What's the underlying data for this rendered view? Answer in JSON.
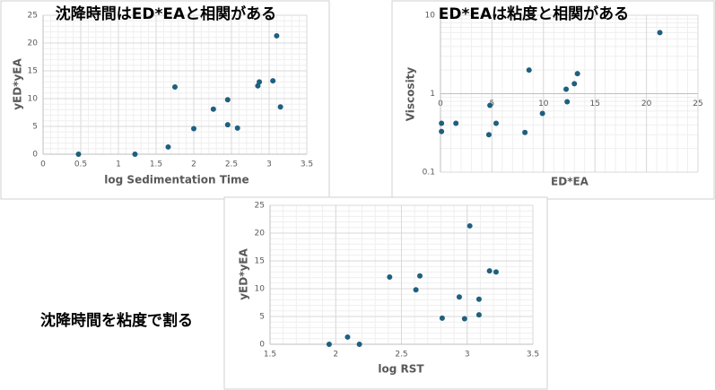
{
  "caption": "沈降時間を粘度で割る",
  "chart_data": [
    {
      "type": "scatter",
      "title": "沈降時間はED*EAと相関がある",
      "x_label": "log Sedimentation Time",
      "y_label": "yED*yEA",
      "color": "#1f5f7f",
      "grid": true,
      "minor_grid": true,
      "x": [
        0.47,
        1.22,
        1.66,
        1.75,
        2.0,
        2.26,
        2.45,
        2.45,
        2.58,
        2.85,
        2.87,
        3.05,
        3.1,
        3.15
      ],
      "y": [
        0,
        0,
        1.3,
        12.1,
        4.6,
        8.1,
        9.8,
        5.3,
        4.7,
        12.3,
        13.0,
        13.2,
        21.3,
        8.5
      ],
      "xlim": [
        0,
        3.5
      ],
      "xticks": [
        0,
        0.5,
        1,
        1.5,
        2,
        2.5,
        3,
        3.5
      ],
      "ylim": [
        0,
        25
      ],
      "yticks": [
        0,
        5,
        10,
        15,
        20,
        25
      ]
    },
    {
      "type": "scatter",
      "title": "ED*EAは粘度と相関がある",
      "x_label": "ED*EA",
      "y_label": "Viscosity",
      "color": "#1f5f7f",
      "grid": true,
      "minor_grid": true,
      "ylog": true,
      "x_axis_crosses": 1,
      "x": [
        0.1,
        0.1,
        1.5,
        4.8,
        4.7,
        5.4,
        8.2,
        8.6,
        9.9,
        12.2,
        12.3,
        13.0,
        13.3,
        21.3
      ],
      "y": [
        0.42,
        0.33,
        0.42,
        0.71,
        0.3,
        0.42,
        0.32,
        2.0,
        0.56,
        1.14,
        0.79,
        1.34,
        1.8,
        6.0
      ],
      "xlim": [
        0,
        25
      ],
      "xticks": [
        0,
        5,
        10,
        15,
        20,
        25
      ],
      "ylim": [
        0.1,
        10
      ],
      "yticks": [
        0.1,
        1,
        10
      ]
    },
    {
      "type": "scatter",
      "x_label": "log RST",
      "y_label": "yED*yEA",
      "color": "#1f5f7f",
      "grid": true,
      "minor_grid": true,
      "x": [
        1.95,
        2.09,
        2.18,
        2.41,
        2.61,
        2.64,
        2.81,
        2.94,
        2.98,
        3.02,
        3.09,
        3.09,
        3.17,
        3.22
      ],
      "y": [
        0,
        1.3,
        0,
        12.1,
        9.8,
        12.3,
        4.7,
        8.5,
        4.6,
        21.3,
        5.3,
        8.1,
        13.2,
        13.0
      ],
      "xlim": [
        1.5,
        3.5
      ],
      "xticks": [
        1.5,
        2,
        2.5,
        3,
        3.5
      ],
      "ylim": [
        0,
        25
      ],
      "yticks": [
        0,
        5,
        10,
        15,
        20,
        25
      ]
    }
  ]
}
